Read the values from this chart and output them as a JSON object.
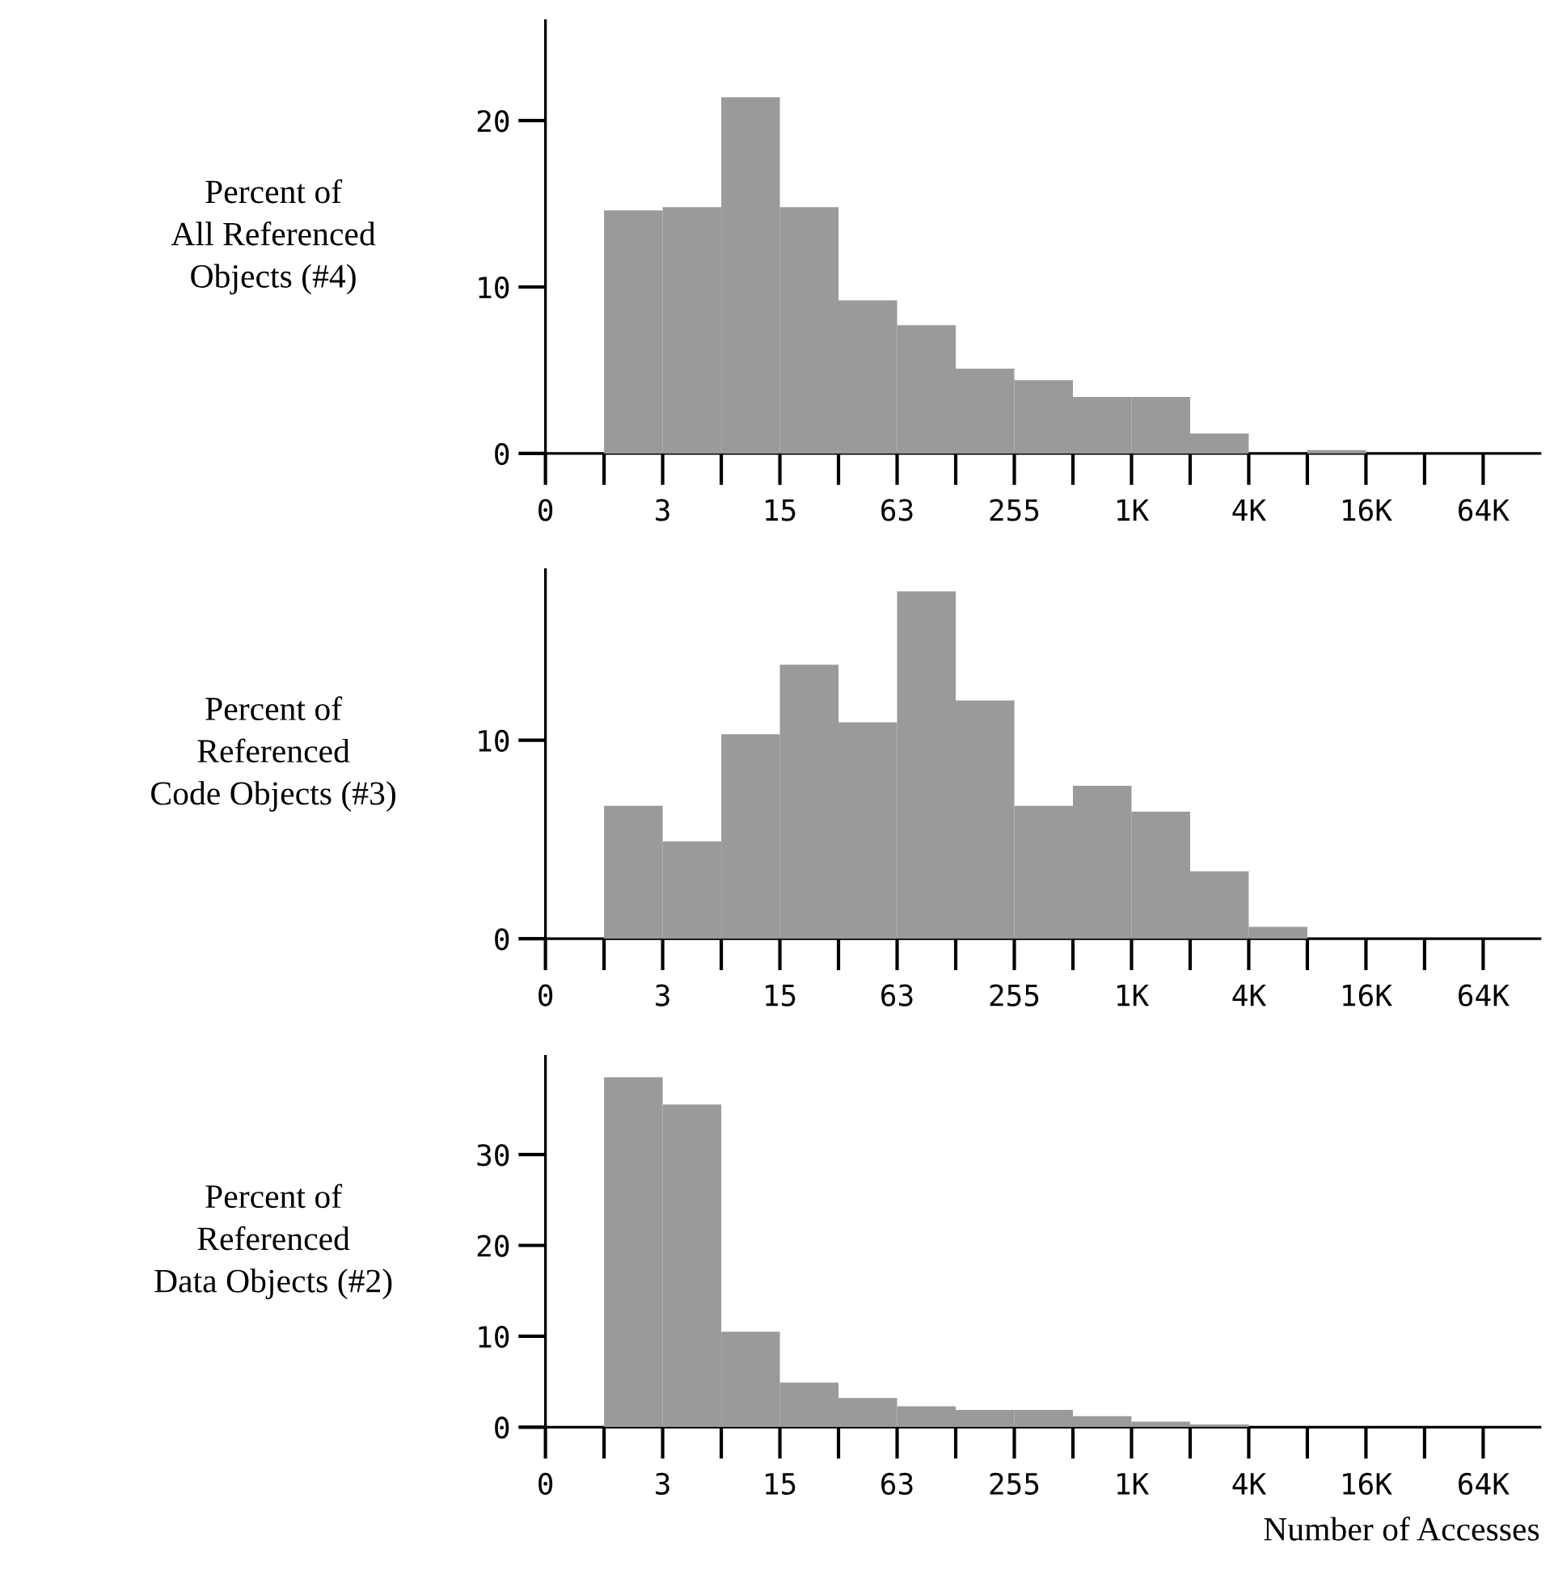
{
  "chart_data": [
    {
      "type": "bar",
      "ylabel": "Percent of\nAll Referenced\nObjects (#4)",
      "categories": [
        null,
        null,
        null,
        null,
        null,
        null,
        null,
        null,
        null,
        null,
        null,
        null,
        null,
        null,
        null,
        null,
        null
      ],
      "values": [
        0,
        14.6,
        14.8,
        21.4,
        14.8,
        9.2,
        7.7,
        5.1,
        4.4,
        3.4,
        3.4,
        1.2,
        0,
        0.2,
        0,
        0,
        0
      ],
      "color": "#9a9a9a",
      "ylim": [
        0,
        26
      ],
      "yticks": [
        0,
        10,
        20
      ],
      "annotations": [
        "0",
        "3",
        "15",
        "63",
        "255",
        "1K",
        "4K",
        "16K",
        "64K"
      ],
      "grid": false,
      "legend": false
    },
    {
      "type": "bar",
      "ylabel": "Percent of\nReferenced\nCode Objects (#3)",
      "categories": [
        null,
        null,
        null,
        null,
        null,
        null,
        null,
        null,
        null,
        null,
        null,
        null,
        null,
        null,
        null,
        null,
        null
      ],
      "values": [
        0,
        6.7,
        4.9,
        10.3,
        13.8,
        10.9,
        17.5,
        12.0,
        6.7,
        7.7,
        6.4,
        3.4,
        0.6,
        0,
        0,
        0,
        0
      ],
      "color": "#9a9a9a",
      "ylim": [
        0,
        18.6
      ],
      "yticks": [
        0,
        10
      ],
      "annotations": [
        "0",
        "3",
        "15",
        "63",
        "255",
        "1K",
        "4K",
        "16K",
        "64K"
      ],
      "grid": false,
      "legend": false
    },
    {
      "type": "bar",
      "ylabel": "Percent of\nReferenced\nData Objects (#2)",
      "xlabel": "Number of Accesses",
      "categories": [
        null,
        null,
        null,
        null,
        null,
        null,
        null,
        null,
        null,
        null,
        null,
        null,
        null,
        null,
        null,
        null,
        null
      ],
      "values": [
        0,
        38.5,
        35.5,
        10.5,
        4.9,
        3.2,
        2.3,
        1.9,
        1.9,
        1.2,
        0.6,
        0.3,
        0,
        0,
        0,
        0,
        0
      ],
      "color": "#9a9a9a",
      "ylim": [
        0,
        40.8
      ],
      "yticks": [
        0,
        10,
        20,
        30
      ],
      "annotations": [
        "0",
        "3",
        "15",
        "63",
        "255",
        "1K",
        "4K",
        "16K",
        "64K"
      ],
      "grid": false,
      "legend": false
    }
  ]
}
